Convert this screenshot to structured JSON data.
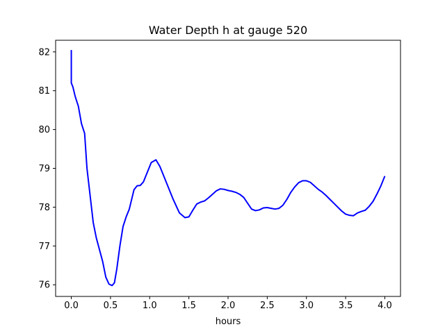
{
  "chart_data": {
    "type": "line",
    "title": "Water Depth h at gauge 520",
    "xlabel": "hours",
    "ylabel": "",
    "xlim": [
      -0.2,
      4.2
    ],
    "ylim": [
      75.7,
      82.3
    ],
    "xticks": [
      0.0,
      0.5,
      1.0,
      1.5,
      2.0,
      2.5,
      3.0,
      3.5,
      4.0
    ],
    "xtick_labels": [
      "0.0",
      "0.5",
      "1.0",
      "1.5",
      "2.0",
      "2.5",
      "3.0",
      "3.5",
      "4.0"
    ],
    "yticks": [
      76,
      77,
      78,
      79,
      80,
      81,
      82
    ],
    "ytick_labels": [
      "76",
      "77",
      "78",
      "79",
      "80",
      "81",
      "82"
    ],
    "grid": false,
    "series": [
      {
        "color": "#0000ff",
        "x": [
          0.0,
          0.0,
          0.02,
          0.05,
          0.09,
          0.13,
          0.17,
          0.2,
          0.24,
          0.28,
          0.32,
          0.36,
          0.4,
          0.44,
          0.48,
          0.52,
          0.55,
          0.58,
          0.62,
          0.66,
          0.7,
          0.74,
          0.8,
          0.84,
          0.88,
          0.92,
          0.97,
          1.02,
          1.08,
          1.13,
          1.17,
          1.22,
          1.3,
          1.38,
          1.45,
          1.5,
          1.55,
          1.6,
          1.65,
          1.7,
          1.75,
          1.8,
          1.85,
          1.9,
          1.95,
          2.0,
          2.05,
          2.1,
          2.15,
          2.2,
          2.25,
          2.3,
          2.35,
          2.4,
          2.45,
          2.5,
          2.55,
          2.6,
          2.65,
          2.7,
          2.75,
          2.8,
          2.85,
          2.9,
          2.95,
          3.0,
          3.05,
          3.1,
          3.15,
          3.2,
          3.25,
          3.3,
          3.35,
          3.4,
          3.45,
          3.5,
          3.55,
          3.6,
          3.65,
          3.7,
          3.75,
          3.8,
          3.85,
          3.9,
          3.95,
          4.0
        ],
        "y": [
          82.05,
          81.2,
          81.1,
          80.85,
          80.6,
          80.15,
          79.9,
          79.0,
          78.3,
          77.6,
          77.2,
          76.9,
          76.6,
          76.2,
          76.02,
          75.98,
          76.05,
          76.4,
          77.0,
          77.5,
          77.75,
          77.95,
          78.45,
          78.55,
          78.56,
          78.65,
          78.9,
          79.15,
          79.22,
          79.05,
          78.85,
          78.6,
          78.2,
          77.85,
          77.73,
          77.75,
          77.92,
          78.08,
          78.13,
          78.16,
          78.24,
          78.33,
          78.42,
          78.47,
          78.46,
          78.43,
          78.41,
          78.38,
          78.33,
          78.25,
          78.1,
          77.95,
          77.91,
          77.93,
          77.98,
          77.99,
          77.97,
          77.95,
          77.97,
          78.05,
          78.2,
          78.38,
          78.52,
          78.63,
          78.68,
          78.68,
          78.64,
          78.55,
          78.46,
          78.39,
          78.3,
          78.2,
          78.1,
          78.0,
          77.9,
          77.82,
          77.79,
          77.78,
          77.85,
          77.89,
          77.92,
          78.02,
          78.15,
          78.34,
          78.55,
          78.8
        ]
      }
    ]
  }
}
